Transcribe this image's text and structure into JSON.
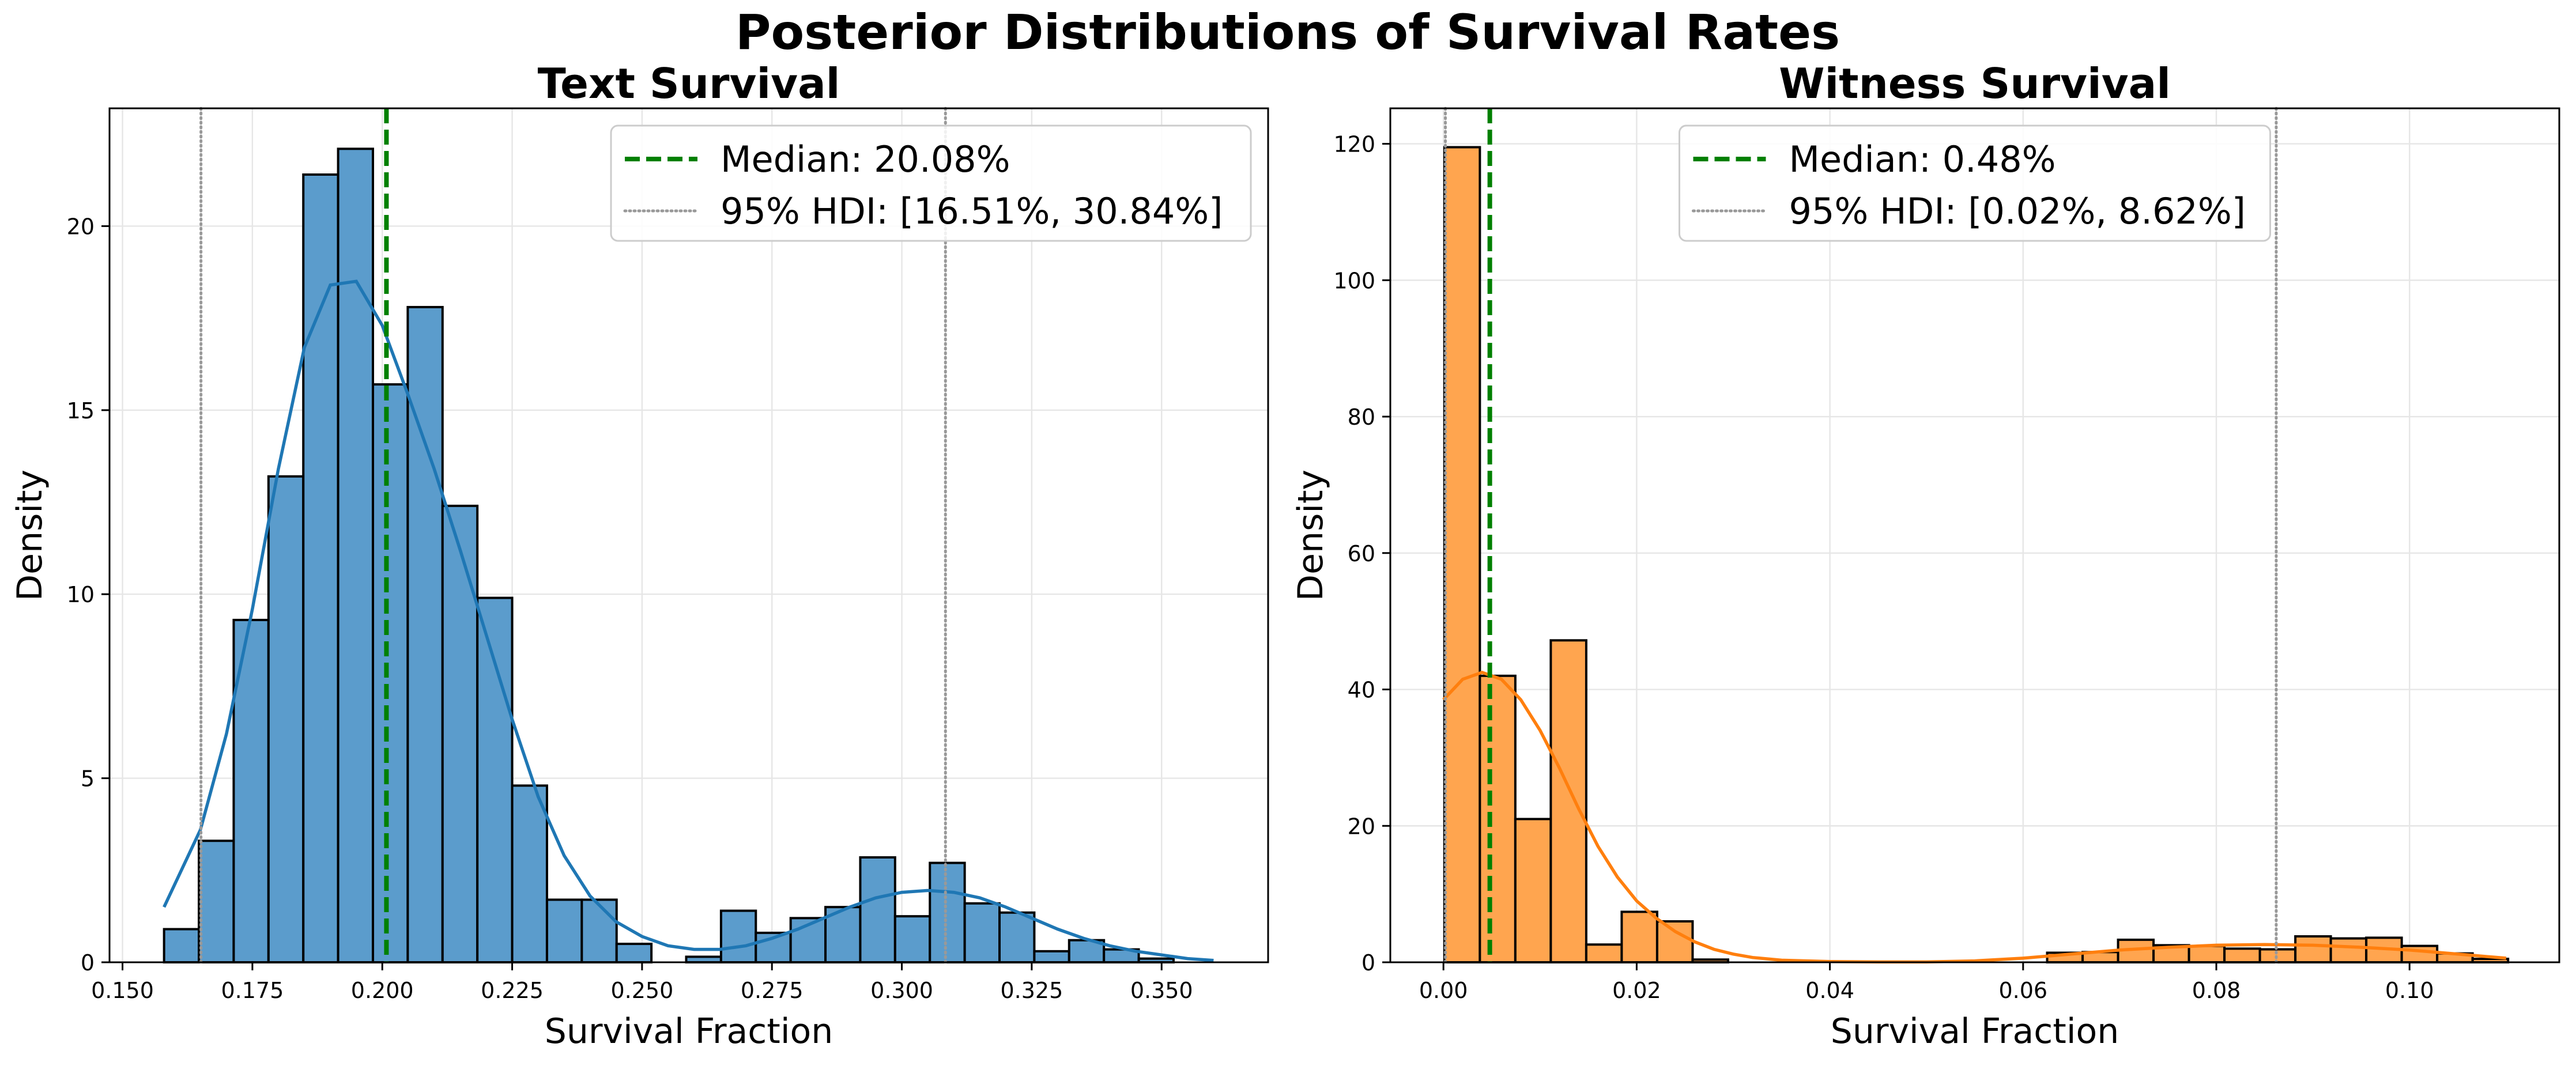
{
  "figure": {
    "title": "Posterior Distributions of Survival Rates"
  },
  "chart_data": [
    {
      "type": "histogram",
      "title": "Text Survival",
      "xlabel": "Survival Fraction",
      "ylabel": "Density",
      "xlim": [
        0.1475,
        0.3705
      ],
      "ylim": [
        0,
        23.2
      ],
      "xticks": [
        0.15,
        0.175,
        0.2,
        0.225,
        0.25,
        0.275,
        0.3,
        0.325,
        0.35
      ],
      "xtick_labels": [
        "0.150",
        "0.175",
        "0.200",
        "0.225",
        "0.250",
        "0.275",
        "0.300",
        "0.325",
        "0.350"
      ],
      "yticks": [
        0,
        5,
        10,
        15,
        20
      ],
      "ytick_labels": [
        "0",
        "5",
        "10",
        "15",
        "20"
      ],
      "grid": true,
      "legend_position": "upper-right",
      "bar_color": "#5b9ccc",
      "kde_color": "#1f77b4",
      "bins": {
        "x0": 0.158,
        "width": 0.0067,
        "density": [
          0.9,
          3.3,
          9.3,
          13.2,
          21.4,
          22.1,
          15.7,
          17.8,
          12.4,
          9.9,
          4.8,
          1.7,
          1.7,
          0.5,
          0,
          0.15,
          1.4,
          0.8,
          1.2,
          1.5,
          2.85,
          1.25,
          2.7,
          1.6,
          1.35,
          0.3,
          0.6,
          0.35,
          0.1
        ]
      },
      "kde": {
        "x": [
          0.158,
          0.165,
          0.17,
          0.175,
          0.18,
          0.185,
          0.19,
          0.195,
          0.2,
          0.205,
          0.21,
          0.215,
          0.22,
          0.225,
          0.23,
          0.235,
          0.24,
          0.245,
          0.25,
          0.255,
          0.26,
          0.265,
          0.27,
          0.275,
          0.28,
          0.285,
          0.29,
          0.295,
          0.3,
          0.305,
          0.31,
          0.315,
          0.32,
          0.325,
          0.33,
          0.335,
          0.34,
          0.345,
          0.35,
          0.355,
          0.36
        ],
        "y": [
          1.5,
          3.6,
          6.2,
          9.6,
          13.4,
          16.7,
          18.4,
          18.5,
          17.3,
          15.4,
          13.4,
          11.2,
          8.9,
          6.6,
          4.5,
          2.9,
          1.8,
          1.1,
          0.7,
          0.45,
          0.35,
          0.35,
          0.45,
          0.65,
          0.9,
          1.2,
          1.5,
          1.75,
          1.9,
          1.95,
          1.9,
          1.75,
          1.5,
          1.2,
          0.9,
          0.65,
          0.45,
          0.3,
          0.2,
          0.1,
          0.05
        ]
      },
      "median": 0.2008,
      "hdi": [
        0.1651,
        0.3084
      ],
      "legend": {
        "median_label": "Median: 20.08%",
        "hdi_label": "95% HDI: [16.51%, 30.84%]"
      }
    },
    {
      "type": "histogram",
      "title": "Witness Survival",
      "xlabel": "Survival Fraction",
      "ylabel": "Density",
      "xlim": [
        -0.0055,
        0.1155
      ],
      "ylim": [
        0,
        125.2
      ],
      "xticks": [
        0,
        0.02,
        0.04,
        0.06,
        0.08,
        0.1
      ],
      "xtick_labels": [
        "0.00",
        "0.02",
        "0.04",
        "0.06",
        "0.08",
        "0.10"
      ],
      "yticks": [
        0,
        20,
        40,
        60,
        80,
        100,
        120
      ],
      "ytick_labels": [
        "0",
        "20",
        "40",
        "60",
        "80",
        "100",
        "120"
      ],
      "grid": true,
      "legend_position": "upper-center",
      "bar_color": "#ffa54f",
      "kde_color": "#ff7f0e",
      "bins": {
        "x0": 0.0001,
        "width": 0.00367,
        "density": [
          119.5,
          42.0,
          21.0,
          47.2,
          2.6,
          7.4,
          6.0,
          0.4,
          0,
          0,
          0,
          0,
          0,
          0,
          0,
          0,
          0,
          1.4,
          1.5,
          3.3,
          2.5,
          2.4,
          2.0,
          1.9,
          3.8,
          3.5,
          3.6,
          2.4,
          1.3,
          0.5
        ]
      },
      "kde": {
        "x": [
          0.0,
          0.002,
          0.004,
          0.006,
          0.008,
          0.01,
          0.012,
          0.014,
          0.016,
          0.018,
          0.02,
          0.022,
          0.024,
          0.026,
          0.028,
          0.03,
          0.032,
          0.035,
          0.04,
          0.045,
          0.05,
          0.055,
          0.06,
          0.065,
          0.07,
          0.075,
          0.08,
          0.085,
          0.09,
          0.095,
          0.1,
          0.105,
          0.11
        ],
        "y": [
          38.5,
          41.5,
          42.5,
          41.5,
          38.5,
          34.0,
          28.5,
          22.5,
          17.0,
          12.5,
          9.0,
          6.5,
          4.5,
          3.0,
          1.9,
          1.2,
          0.7,
          0.3,
          0.1,
          0.05,
          0.05,
          0.2,
          0.6,
          1.2,
          1.8,
          2.2,
          2.5,
          2.6,
          2.5,
          2.2,
          1.8,
          1.2,
          0.6
        ]
      },
      "median": 0.0048,
      "hdi": [
        0.0002,
        0.0862
      ],
      "legend": {
        "median_label": "Median: 0.48%",
        "hdi_label": "95% HDI: [0.02%, 8.62%]"
      }
    }
  ]
}
